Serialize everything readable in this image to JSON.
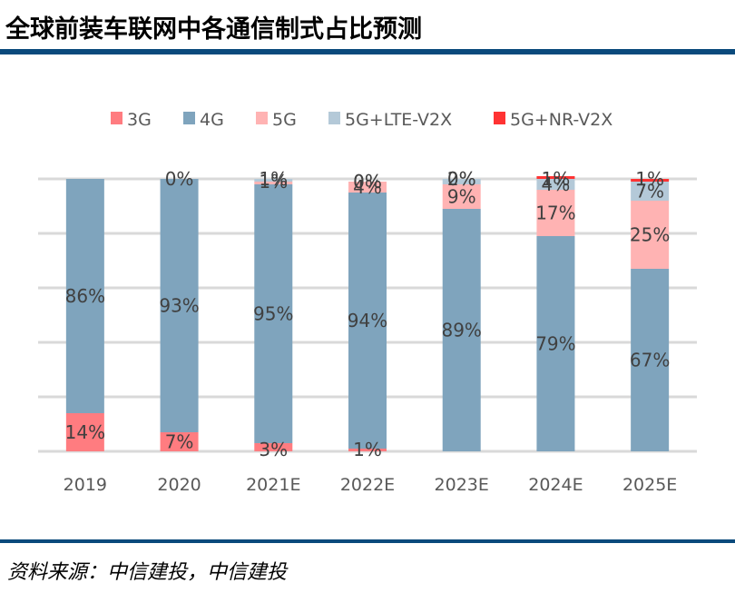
{
  "header": {
    "title": "全球前装车联网中各通信制式占比预测"
  },
  "footer": {
    "source": "资料来源：中信建投，中信建投"
  },
  "chart_data": {
    "type": "bar",
    "stacked": true,
    "title": "全球前装车联网中各通信制式占比预测",
    "xlabel": "",
    "ylabel": "",
    "ylim": [
      0,
      100
    ],
    "grid": true,
    "legend_position": "top",
    "categories": [
      "2019",
      "2020",
      "2021E",
      "2022E",
      "2023E",
      "2024E",
      "2025E"
    ],
    "series": [
      {
        "name": "3G",
        "color": "#ff7c80",
        "values": [
          14,
          7,
          3,
          1,
          0,
          0,
          0
        ],
        "labels": [
          "14%",
          "7%",
          "3%",
          "1%",
          null,
          null,
          null
        ]
      },
      {
        "name": "4G",
        "color": "#7fa4bd",
        "values": [
          86,
          93,
          95,
          94,
          89,
          79,
          67
        ],
        "labels": [
          "86%",
          "93%",
          "95%",
          "94%",
          "89%",
          "79%",
          "67%"
        ]
      },
      {
        "name": "5G",
        "color": "#ffb3b3",
        "values": [
          0,
          0,
          1,
          4,
          9,
          17,
          25
        ],
        "labels": [
          null,
          "0%",
          "1%",
          "4%",
          "9%",
          "17%",
          "25%"
        ]
      },
      {
        "name": "5G+LTE-V2X",
        "color": "#b4c9d8",
        "values": [
          0,
          0,
          1,
          0,
          2,
          4,
          7
        ],
        "labels": [
          null,
          null,
          "1%",
          "0%",
          "2%",
          "4%",
          "7%"
        ]
      },
      {
        "name": "5G+NR-V2X",
        "color": "#ff3333",
        "values": [
          0,
          0,
          0,
          0,
          0,
          1,
          1
        ],
        "labels": [
          null,
          null,
          null,
          "0%",
          "0%",
          "1%",
          "1%"
        ]
      }
    ]
  }
}
